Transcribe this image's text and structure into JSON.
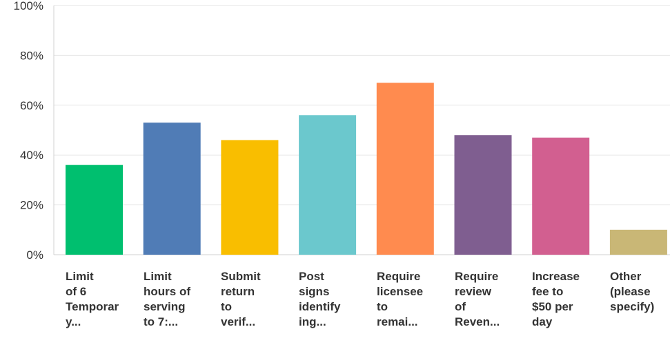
{
  "chart_data": {
    "type": "bar",
    "categories": [
      "Limit of 6 Temporary...",
      "Limit hours of serving to 7:...",
      "Submit return to verif...",
      "Post signs identifying...",
      "Require licensee to remai...",
      "Require review of Reven...",
      "Increase fee to $50 per day",
      "Other (please specify)"
    ],
    "category_lines": [
      [
        "Limit",
        "of 6",
        "Temporar",
        "y..."
      ],
      [
        "Limit",
        "hours of",
        "serving",
        "to 7:..."
      ],
      [
        "Submit",
        "return",
        "to",
        "verif..."
      ],
      [
        "Post",
        "signs",
        "identify",
        "ing..."
      ],
      [
        "Require",
        "licensee",
        "to",
        "remai..."
      ],
      [
        "Require",
        "review",
        "of",
        "Reven..."
      ],
      [
        "Increase",
        "fee to",
        "$50 per",
        "day"
      ],
      [
        "Other",
        "(please",
        "specify)"
      ]
    ],
    "values": [
      36,
      53,
      46,
      56,
      69,
      48,
      47,
      10
    ],
    "colors": [
      "#00bf6f",
      "#507cb6",
      "#f9be00",
      "#6bc8cd",
      "#ff8b4f",
      "#7f5e90",
      "#d25f90",
      "#c9b776"
    ],
    "ylim": [
      0,
      100
    ],
    "yticks": [
      "0%",
      "20%",
      "40%",
      "60%",
      "80%",
      "100%"
    ],
    "ytick_values": [
      0,
      20,
      40,
      60,
      80,
      100
    ],
    "grid": true,
    "title": "",
    "xlabel": "",
    "ylabel": ""
  }
}
